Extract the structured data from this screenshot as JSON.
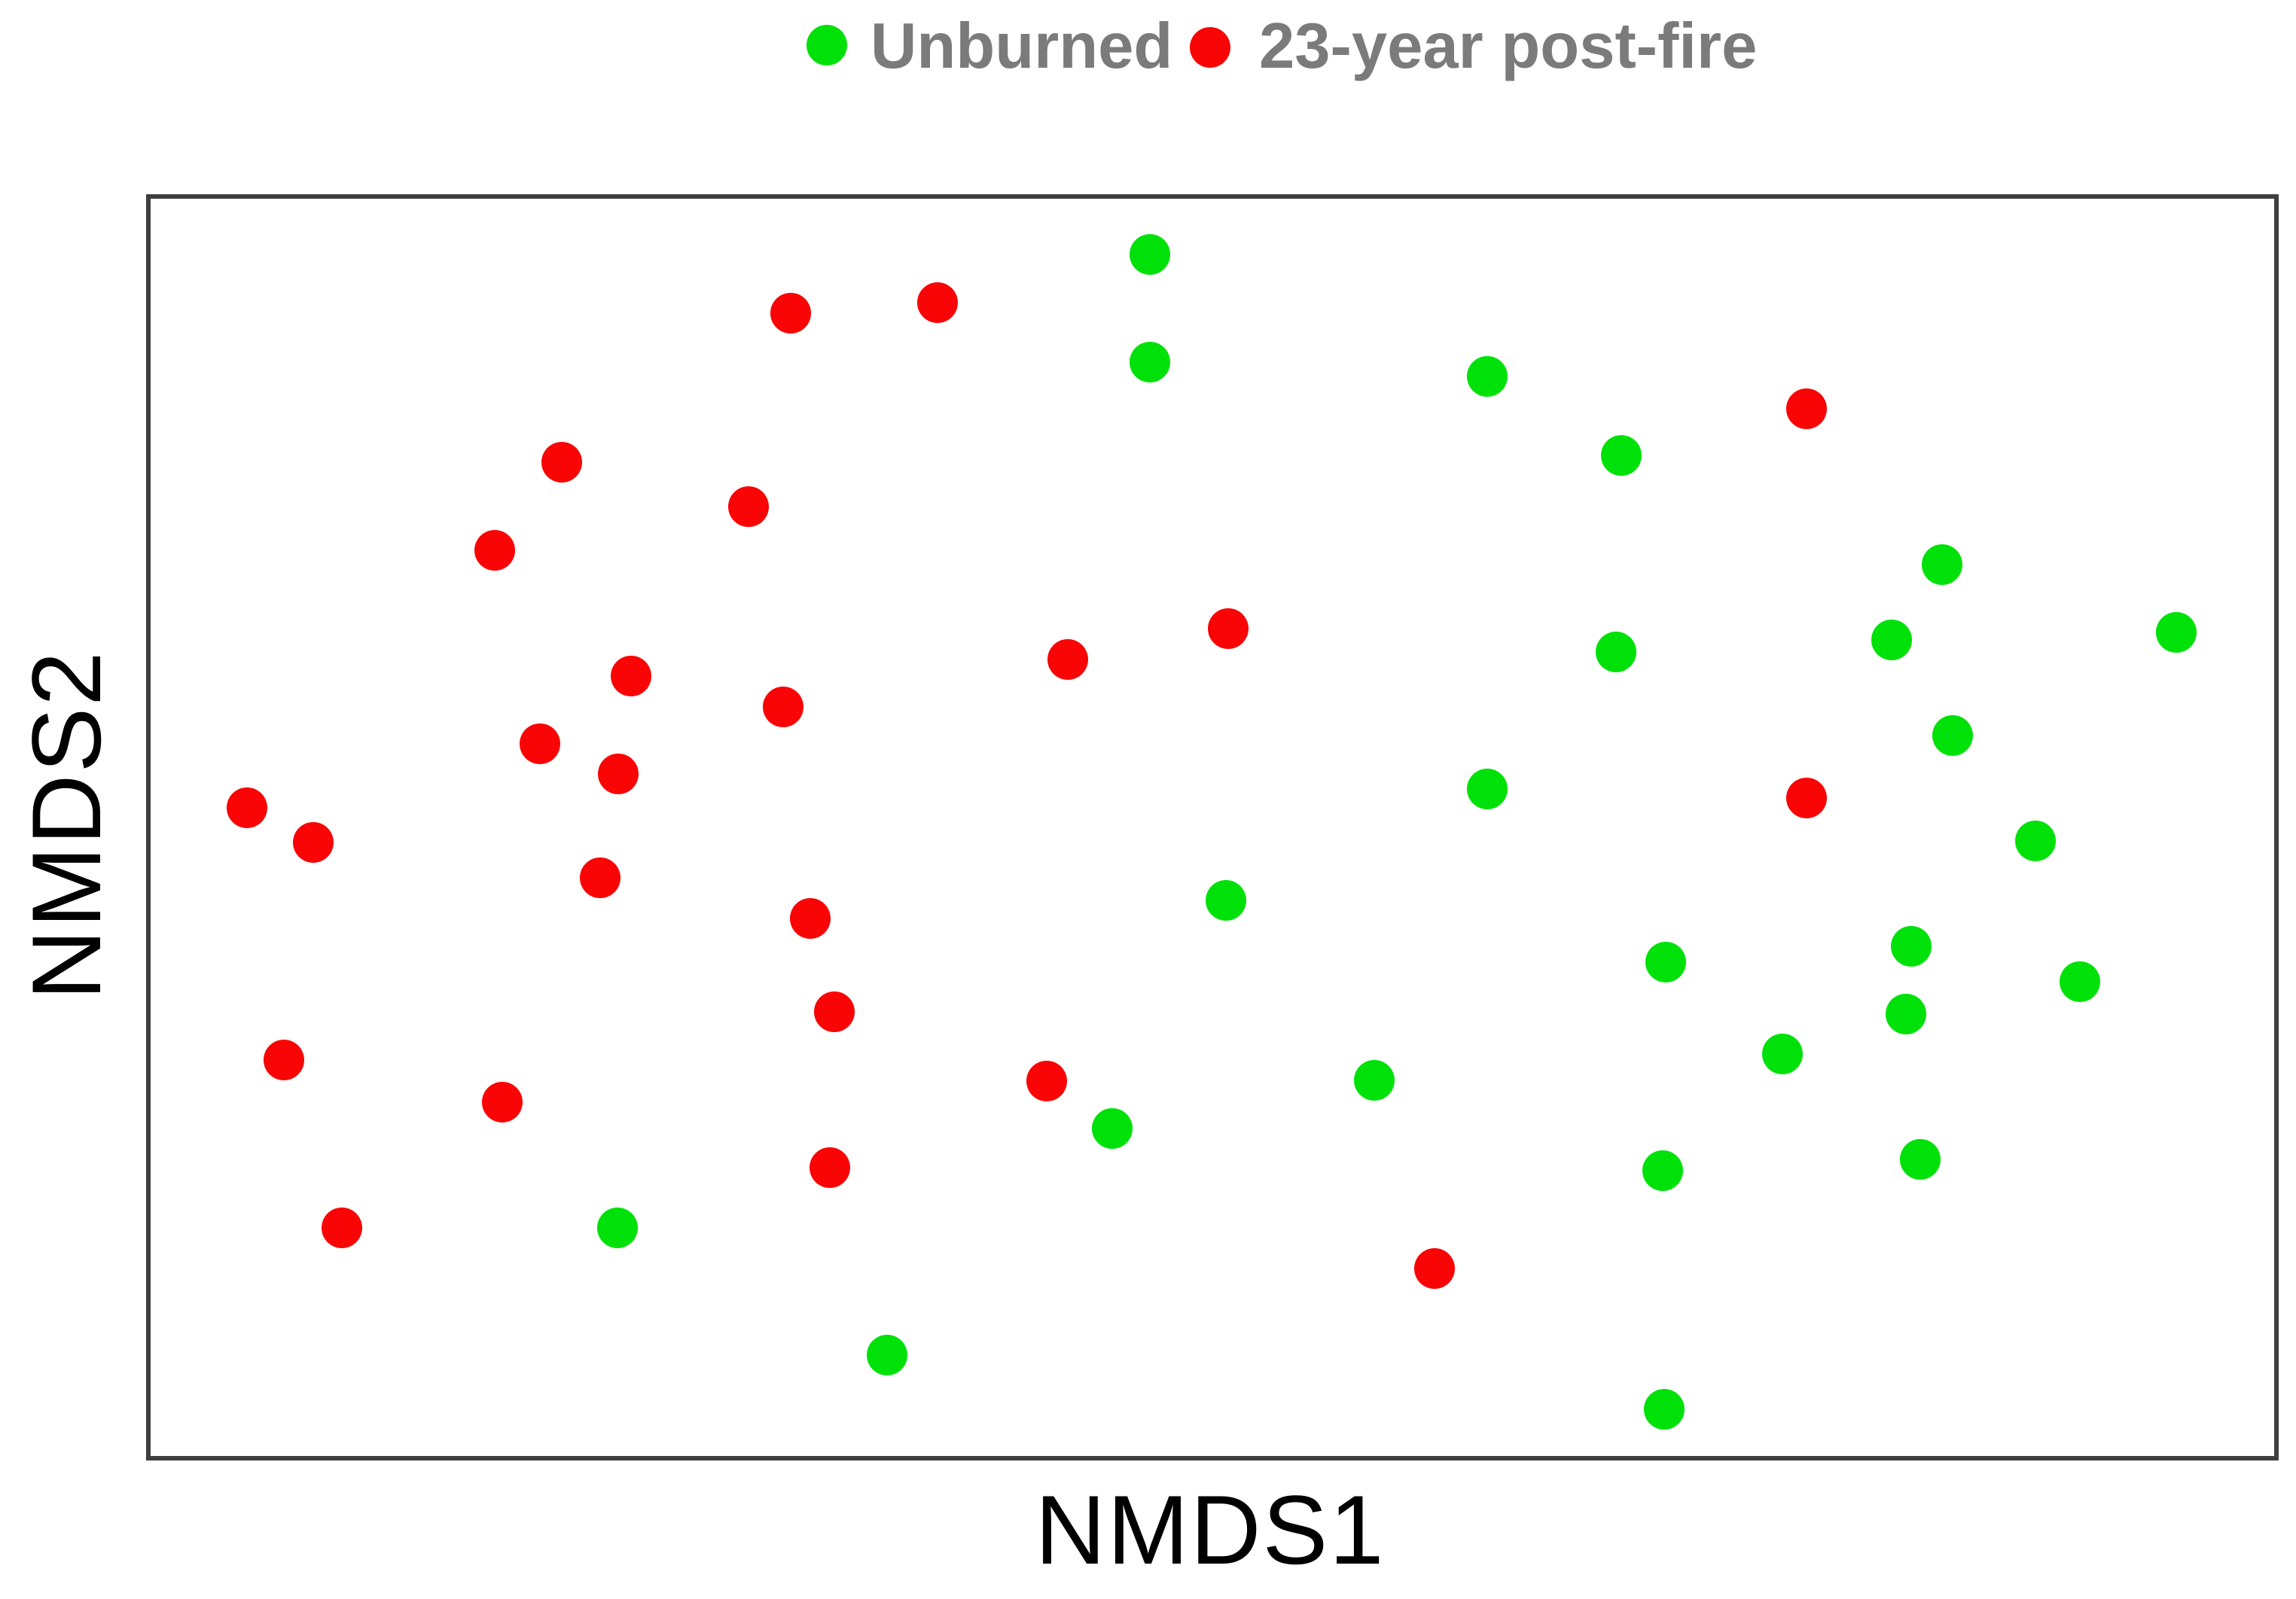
{
  "legend": {
    "items": [
      {
        "label": "Unburned",
        "color": "#00e109",
        "marker": "circle-icon"
      },
      {
        "label": "23-year post-fire",
        "color": "#f90505",
        "marker": "circle-icon"
      }
    ],
    "text_color": "#7b7b7b",
    "position": "top-center"
  },
  "axes": {
    "x_label": "NMDS1",
    "y_label": "NMDS2",
    "tick_labels": "none"
  },
  "colors": {
    "plot_border": "#3f3f3f",
    "axis_label": "#000000",
    "background": "#ffffff",
    "unburned_green": "#00e109",
    "postfire_red": "#f90505"
  },
  "chart_data": {
    "type": "scatter",
    "title": "",
    "xlabel": "NMDS1",
    "ylabel": "NMDS2",
    "xlim": [
      -1.5,
      1.5
    ],
    "ylim": [
      -1.0,
      1.0
    ],
    "grid": false,
    "axis_ticks": "none",
    "legend_position": "top-center",
    "series": [
      {
        "name": "Unburned",
        "color": "#00e109",
        "marker": "circle",
        "points": [
          [
            -0.085,
            0.908
          ],
          [
            -0.085,
            0.737
          ],
          [
            0.392,
            0.714
          ],
          [
            0.581,
            0.588
          ],
          [
            1.034,
            0.414
          ],
          [
            1.365,
            0.307
          ],
          [
            0.963,
            0.295
          ],
          [
            0.573,
            0.275
          ],
          [
            1.049,
            0.143
          ],
          [
            0.392,
            0.057
          ],
          [
            1.166,
            -0.025
          ],
          [
            0.022,
            -0.12
          ],
          [
            0.99,
            -0.193
          ],
          [
            0.644,
            -0.218
          ],
          [
            1.229,
            -0.249
          ],
          [
            0.983,
            -0.3
          ],
          [
            0.809,
            -0.364
          ],
          [
            0.232,
            -0.406
          ],
          [
            -0.138,
            -0.483
          ],
          [
            0.639,
            -0.55
          ],
          [
            1.003,
            -0.532
          ],
          [
            -0.837,
            -0.641
          ],
          [
            -0.456,
            -0.843
          ],
          [
            0.641,
            -0.929
          ]
        ]
      },
      {
        "name": "23-year post-fire",
        "color": "#f90505",
        "marker": "circle",
        "points": [
          [
            -0.593,
            0.814
          ],
          [
            -0.385,
            0.831
          ],
          [
            0.843,
            0.662
          ],
          [
            -0.916,
            0.577
          ],
          [
            -0.652,
            0.507
          ],
          [
            -1.011,
            0.437
          ],
          [
            0.025,
            0.313
          ],
          [
            -0.201,
            0.263
          ],
          [
            -0.818,
            0.237
          ],
          [
            -0.603,
            0.188
          ],
          [
            -0.947,
            0.129
          ],
          [
            -0.836,
            0.081
          ],
          [
            -1.361,
            0.028
          ],
          [
            -1.267,
            -0.028
          ],
          [
            -0.862,
            -0.084
          ],
          [
            0.843,
            0.043
          ],
          [
            -0.565,
            -0.149
          ],
          [
            -0.531,
            -0.297
          ],
          [
            -1.309,
            -0.374
          ],
          [
            -1.0,
            -0.441
          ],
          [
            -0.231,
            -0.407
          ],
          [
            -0.537,
            -0.545
          ],
          [
            -1.227,
            -0.641
          ],
          [
            0.317,
            -0.705
          ]
        ]
      }
    ]
  }
}
